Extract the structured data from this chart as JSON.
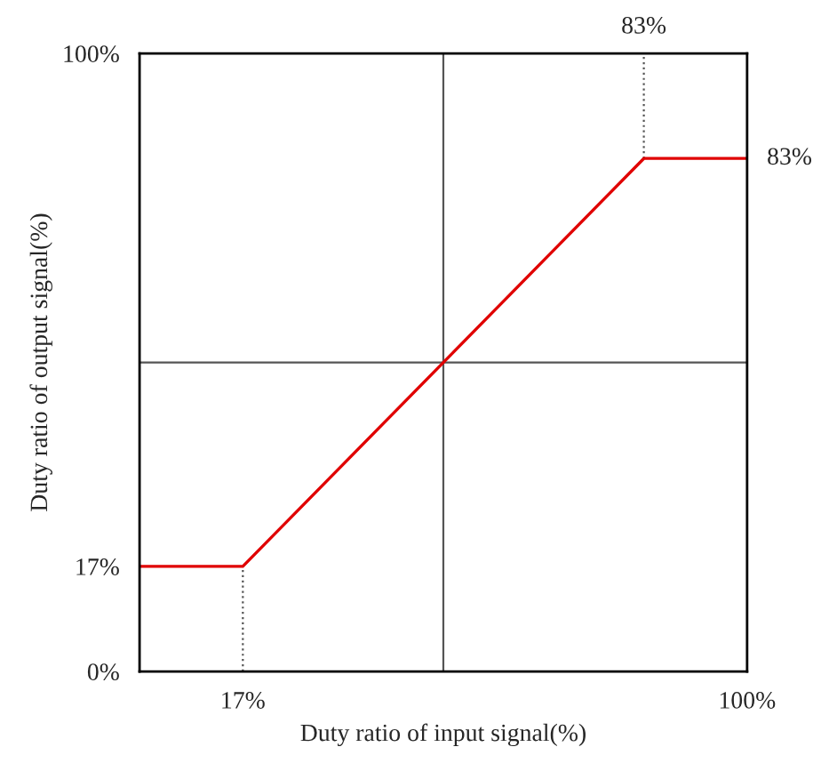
{
  "chart_data": {
    "type": "line",
    "xlabel": "Duty ratio of input signal(%)",
    "ylabel": "Duty ratio of output signal(%)",
    "x": [
      0,
      17,
      83,
      100
    ],
    "series": [
      {
        "color": "#e00000",
        "values": [
          17,
          17,
          83,
          83
        ]
      }
    ],
    "xlim": [
      0,
      100
    ],
    "ylim": [
      0,
      100
    ],
    "xticks": [
      {
        "value": 17,
        "label": "17%"
      },
      {
        "value": 100,
        "label": "100%"
      }
    ],
    "yticks": [
      {
        "value": 0,
        "label": "0%"
      },
      {
        "value": 17,
        "label": "17%"
      },
      {
        "value": 100,
        "label": "100%"
      }
    ],
    "annotations": [
      "83%"
    ],
    "ref_lines": [
      {
        "axis": "x",
        "value": 50,
        "color": "#555555",
        "line_style": "solid"
      },
      {
        "axis": "y",
        "value": 50,
        "color": "#555555",
        "line_style": "solid"
      },
      {
        "axis": "x",
        "value": 17,
        "color": "#555555",
        "line_style": "dotted"
      },
      {
        "axis": "x",
        "value": 83,
        "color": "#555555",
        "line_style": "dotted",
        "label": "83%"
      }
    ],
    "grid": false,
    "legend": false,
    "marker": "none",
    "line_style": "solid"
  }
}
